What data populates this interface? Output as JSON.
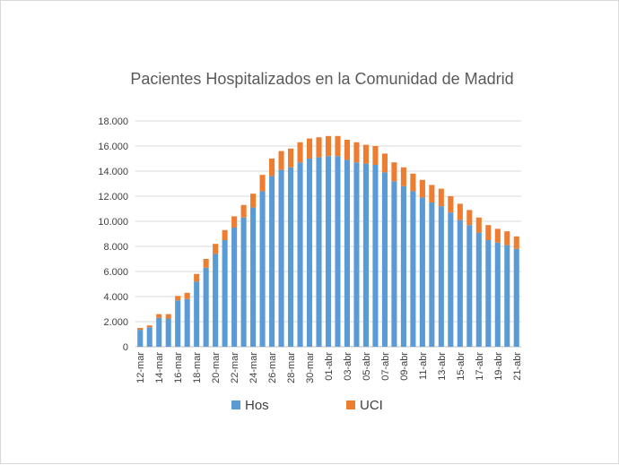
{
  "colors": {
    "hos": "#5b9bd5",
    "uci": "#ed7d31",
    "grid": "#d9d9d9",
    "axis": "#bfbfbf"
  },
  "chart_data": {
    "type": "bar",
    "stacked": true,
    "title": "Pacientes Hospitalizados en la Comunidad de Madrid",
    "xlabel": "",
    "ylabel": "",
    "ylim": [
      0,
      18000
    ],
    "yticks": [
      0,
      2000,
      4000,
      6000,
      8000,
      10000,
      12000,
      14000,
      16000,
      18000
    ],
    "ytick_labels": [
      "0",
      "2.000",
      "4.000",
      "6.000",
      "8.000",
      "10.000",
      "12.000",
      "14.000",
      "16.000",
      "18.000"
    ],
    "grid": true,
    "legend_position": "bottom",
    "categories": [
      "12-mar",
      "13-mar",
      "14-mar",
      "15-mar",
      "16-mar",
      "17-mar",
      "18-mar",
      "19-mar",
      "20-mar",
      "21-mar",
      "22-mar",
      "23-mar",
      "24-mar",
      "25-mar",
      "26-mar",
      "27-mar",
      "28-mar",
      "29-mar",
      "30-mar",
      "31-mar",
      "01-abr",
      "02-abr",
      "03-abr",
      "04-abr",
      "05-abr",
      "06-abr",
      "07-abr",
      "08-abr",
      "09-abr",
      "10-abr",
      "11-abr",
      "12-abr",
      "13-abr",
      "14-abr",
      "15-abr",
      "16-abr",
      "17-abr",
      "18-abr",
      "19-abr",
      "20-abr",
      "21-abr"
    ],
    "x_tick_labels": [
      "12-mar",
      "",
      "14-mar",
      "",
      "16-mar",
      "",
      "18-mar",
      "",
      "20-mar",
      "",
      "22-mar",
      "",
      "24-mar",
      "",
      "26-mar",
      "",
      "28-mar",
      "",
      "30-mar",
      "",
      "01-abr",
      "",
      "03-abr",
      "",
      "05-abr",
      "",
      "07-abr",
      "",
      "09-abr",
      "",
      "11-abr",
      "",
      "13-abr",
      "",
      "15-abr",
      "",
      "17-abr",
      "",
      "19-abr",
      "",
      "21-abr"
    ],
    "series": [
      {
        "name": "Hos",
        "values": [
          1350,
          1550,
          2300,
          2250,
          3700,
          3800,
          5200,
          6300,
          7400,
          8500,
          9500,
          10300,
          11100,
          12400,
          13600,
          14100,
          14300,
          14700,
          15000,
          15100,
          15200,
          15200,
          14900,
          14700,
          14600,
          14500,
          13900,
          13200,
          12800,
          12400,
          11900,
          11500,
          11200,
          10700,
          10100,
          9700,
          9100,
          8500,
          8300,
          8100,
          7800
        ]
      },
      {
        "name": "UCI",
        "values": [
          150,
          150,
          300,
          350,
          350,
          500,
          600,
          700,
          800,
          800,
          900,
          1000,
          1100,
          1300,
          1400,
          1500,
          1500,
          1600,
          1600,
          1600,
          1600,
          1600,
          1600,
          1600,
          1500,
          1500,
          1500,
          1500,
          1500,
          1400,
          1400,
          1400,
          1400,
          1300,
          1300,
          1200,
          1200,
          1200,
          1100,
          1100,
          1000
        ]
      }
    ]
  }
}
